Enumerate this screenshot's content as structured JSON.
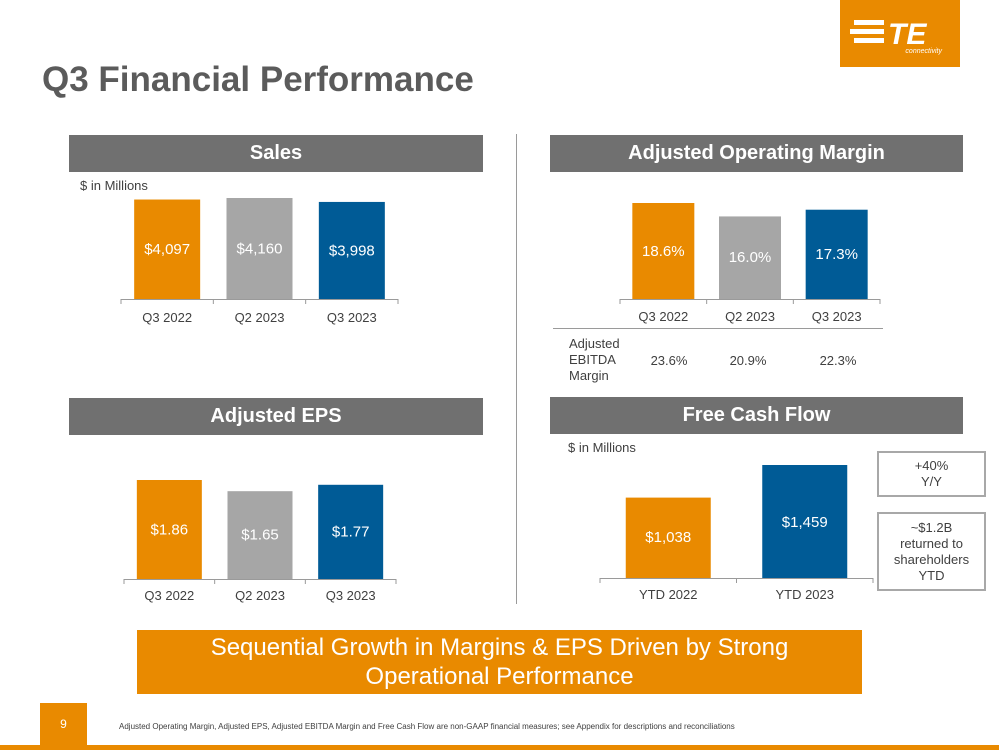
{
  "slide": {
    "title": "Q3 Financial Performance",
    "page_number": "9",
    "footnote": "Adjusted Operating Margin, Adjusted EPS, Adjusted EBITDA Margin and Free Cash Flow are non-GAAP financial measures; see Appendix for descriptions and reconciliations",
    "banner": "Sequential Growth in Margins & EPS Driven by Strong Operational Performance"
  },
  "logo": {
    "text": "TE",
    "subtext": "connectivity",
    "color": "#e98a00"
  },
  "colors": {
    "orange": "#e98a00",
    "gray": "#a6a6a6",
    "blue": "#005b96",
    "header": "#707070"
  },
  "ebitda": {
    "label_lines": [
      "Adjusted",
      "EBITDA",
      "Margin"
    ],
    "values": [
      "23.6%",
      "20.9%",
      "22.3%"
    ]
  },
  "callouts": {
    "growth_lines": [
      "+40%",
      "Y/Y"
    ],
    "returned_lines": [
      "~$1.2B",
      "returned to",
      "shareholders",
      "YTD"
    ]
  },
  "chart_data": [
    {
      "type": "bar",
      "title": "Sales",
      "note": "$ in Millions",
      "categories": [
        "Q3 2022",
        "Q2 2023",
        "Q3 2023"
      ],
      "values": [
        4097,
        4160,
        3998
      ],
      "labels": [
        "$4,097",
        "$4,160",
        "$3,998"
      ],
      "bar_colors": [
        "orange",
        "gray",
        "blue"
      ]
    },
    {
      "type": "bar",
      "title": "Adjusted Operating Margin",
      "note": "",
      "categories": [
        "Q3 2022",
        "Q2 2023",
        "Q3 2023"
      ],
      "values": [
        18.6,
        16.0,
        17.3
      ],
      "labels": [
        "18.6%",
        "16.0%",
        "17.3%"
      ],
      "bar_colors": [
        "orange",
        "gray",
        "blue"
      ]
    },
    {
      "type": "bar",
      "title": "Adjusted EPS",
      "note": "",
      "categories": [
        "Q3 2022",
        "Q2 2023",
        "Q3 2023"
      ],
      "values": [
        1.86,
        1.65,
        1.77
      ],
      "labels": [
        "$1.86",
        "$1.65",
        "$1.77"
      ],
      "bar_colors": [
        "orange",
        "gray",
        "blue"
      ]
    },
    {
      "type": "bar",
      "title": "Free Cash Flow",
      "note": "$ in Millions",
      "categories": [
        "YTD 2022",
        "YTD 2023"
      ],
      "values": [
        1038,
        1459
      ],
      "labels": [
        "$1,038",
        "$1,459"
      ],
      "bar_colors": [
        "orange",
        "blue"
      ]
    }
  ]
}
